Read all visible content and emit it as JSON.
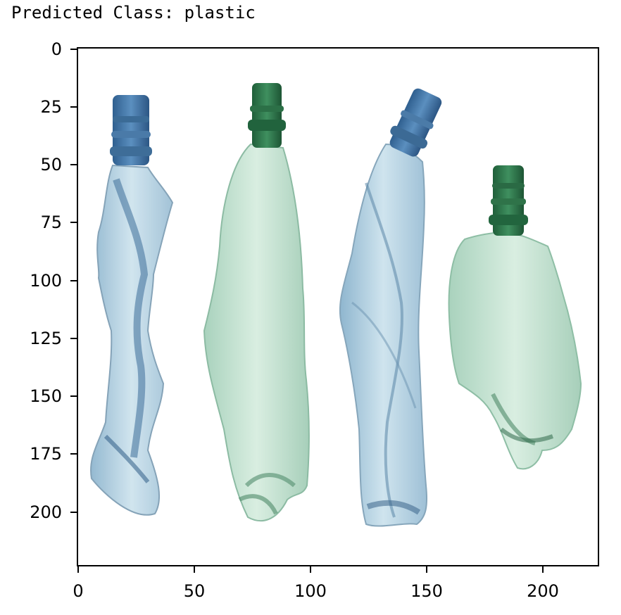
{
  "output": {
    "text": "Predicted Class: plastic"
  },
  "colors": {
    "axes_frame": "#000000",
    "figure_background": "#ffffff"
  },
  "chart_data": {
    "type": "image",
    "title": "",
    "xlabel": "",
    "ylabel": "",
    "xlim": [
      0,
      224
    ],
    "ylim": [
      224,
      0
    ],
    "xticks": [
      0,
      50,
      100,
      150,
      200
    ],
    "yticks": [
      0,
      25,
      50,
      75,
      100,
      125,
      150,
      175,
      200
    ],
    "xtick_labels": [
      "0",
      "50",
      "100",
      "150",
      "200"
    ],
    "ytick_labels": [
      "0",
      "25",
      "50",
      "75",
      "100",
      "125",
      "150",
      "175",
      "200"
    ],
    "image": {
      "subject": "four crushed plastic bottles",
      "bottles": [
        {
          "cap_color": "blue",
          "body_tint": "light blue"
        },
        {
          "cap_color": "green",
          "body_tint": "light green"
        },
        {
          "cap_color": "blue",
          "body_tint": "light blue"
        },
        {
          "cap_color": "green",
          "body_tint": "light green"
        }
      ]
    }
  }
}
